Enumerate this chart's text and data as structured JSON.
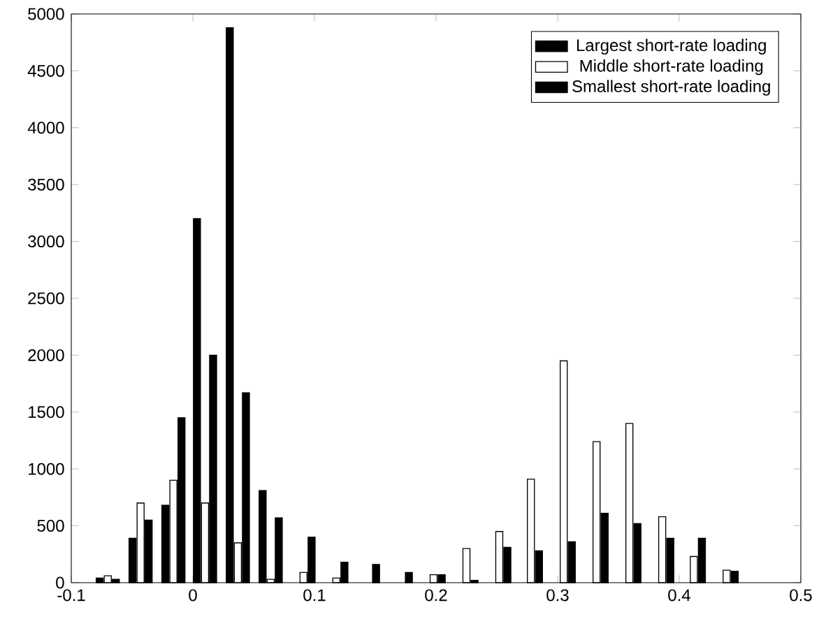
{
  "chart_data": {
    "type": "bar",
    "x": [
      -0.07,
      -0.043,
      -0.016,
      0.01,
      0.037,
      0.064,
      0.091,
      0.118,
      0.144,
      0.171,
      0.198,
      0.225,
      0.252,
      0.278,
      0.305,
      0.332,
      0.359,
      0.386,
      0.412,
      0.439
    ],
    "series": [
      {
        "name": "Largest short-rate loading",
        "color": "#000000",
        "values": [
          40,
          390,
          680,
          3200,
          4880,
          810,
          null,
          null,
          null,
          null,
          null,
          null,
          null,
          null,
          null,
          null,
          null,
          null,
          null,
          null
        ]
      },
      {
        "name": "Middle short-rate loading",
        "color": "#ffffff",
        "values": [
          60,
          700,
          900,
          700,
          350,
          30,
          90,
          40,
          null,
          null,
          70,
          300,
          450,
          910,
          1950,
          1240,
          1400,
          580,
          230,
          110
        ]
      },
      {
        "name": "Smallest short-rate loading",
        "color": "#000000",
        "values": [
          30,
          550,
          1450,
          2000,
          1670,
          570,
          400,
          180,
          160,
          90,
          70,
          20,
          310,
          280,
          360,
          610,
          520,
          390,
          390,
          100
        ]
      }
    ],
    "xlim": [
      -0.1,
      0.5
    ],
    "xticks": [
      -0.1,
      0,
      0.1,
      0.2,
      0.3,
      0.4,
      0.5
    ],
    "ylim": [
      0,
      5000
    ],
    "yticks": [
      0,
      500,
      1000,
      1500,
      2000,
      2500,
      3000,
      3500,
      4000,
      4500,
      5000
    ],
    "grid": false,
    "legend": "top right"
  }
}
